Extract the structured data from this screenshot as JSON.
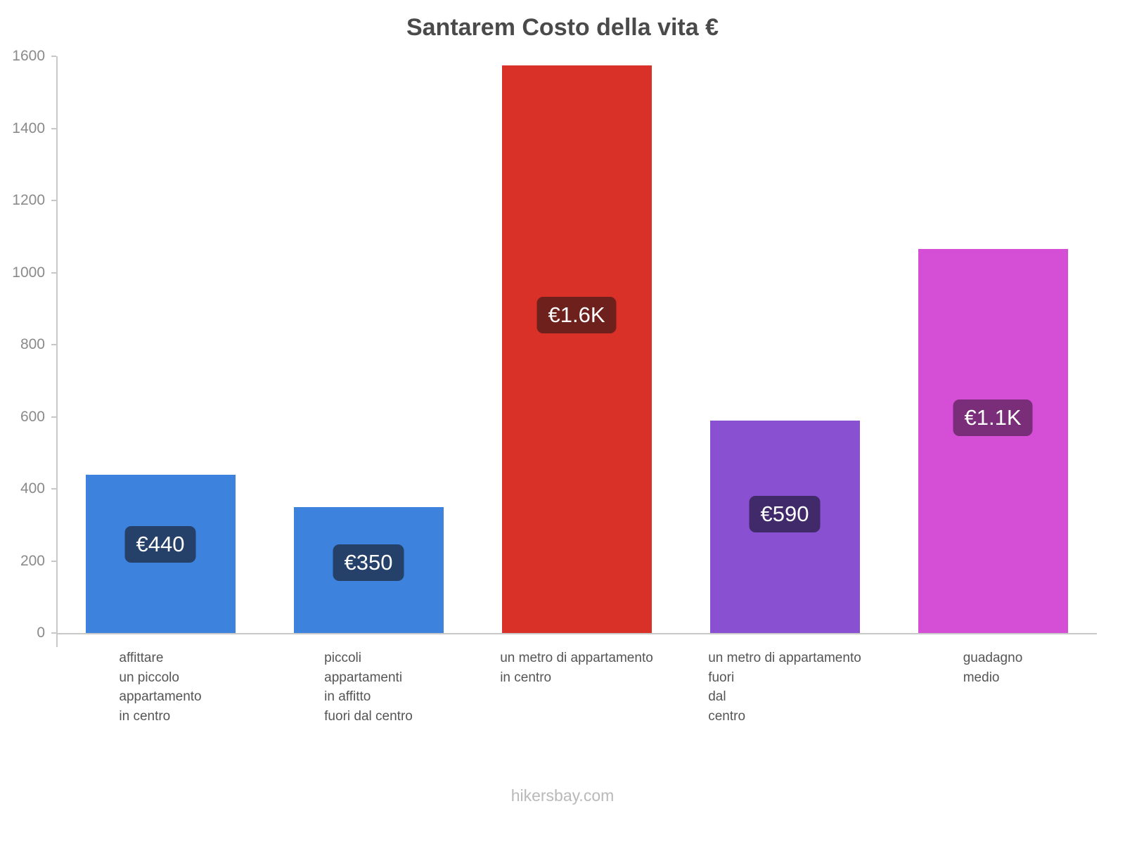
{
  "title": "Santarem Costo della vita €",
  "footer": "hikersbay.com",
  "chart_data": {
    "type": "bar",
    "title": "Santarem Costo della vita €",
    "xlabel": "",
    "ylabel": "",
    "ylim": [
      0,
      1600
    ],
    "ytick_step": 200,
    "grid": false,
    "legend": "none",
    "categories": [
      "affittare\nun piccolo\nappartamento\nin centro",
      "piccoli\nappartamenti\nin affitto\nfuori dal centro",
      "un metro di appartamento\nin centro",
      "un metro di appartamento\nfuori\ndal\ncentro",
      "guadagno\nmedio"
    ],
    "values": [
      440,
      350,
      1575,
      590,
      1065
    ],
    "value_labels": [
      "€440",
      "€350",
      "€1.6K",
      "€590",
      "€1.1K"
    ],
    "bar_colors": [
      "#3d82dd",
      "#3d82dd",
      "#d93027",
      "#8a50d2",
      "#d44fd5"
    ],
    "label_bg_colors": [
      "#254069",
      "#254069",
      "#6e201c",
      "#412a69",
      "#7a2d78"
    ],
    "axis_color": "#c8c8c8",
    "tick_label_color": "#8a8a8a"
  }
}
